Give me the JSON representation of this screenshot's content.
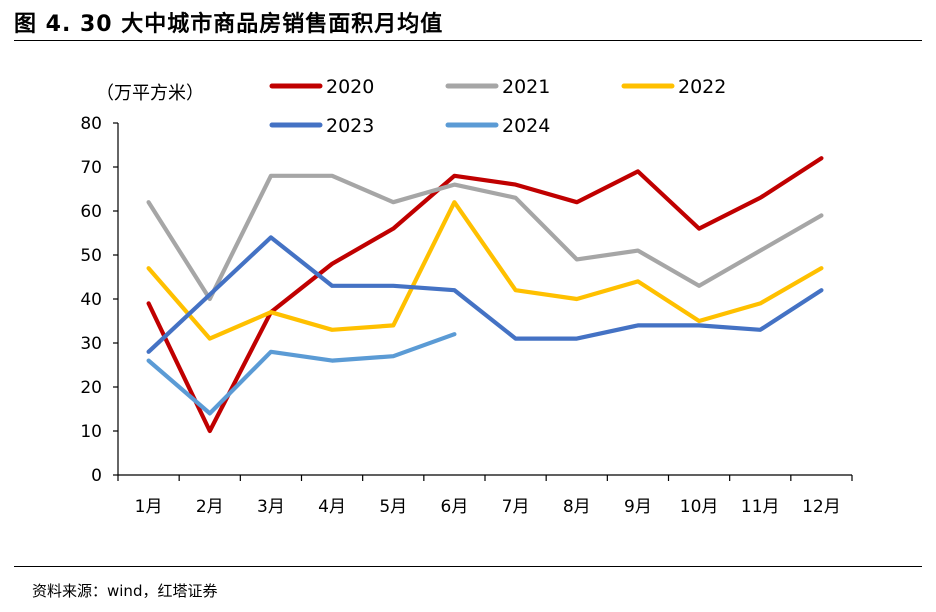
{
  "figure": {
    "title": "图 4. 30 大中城市商品房销售面积月均值",
    "source": "资料来源：wind，红塔证券"
  },
  "chart_data": {
    "type": "line",
    "unit_label": "（万平方米）",
    "categories": [
      "1月",
      "2月",
      "3月",
      "4月",
      "5月",
      "6月",
      "7月",
      "8月",
      "9月",
      "10月",
      "11月",
      "12月"
    ],
    "ylim": [
      0,
      80
    ],
    "yticks": [
      "0",
      "10",
      "20",
      "30",
      "40",
      "50",
      "60",
      "70",
      "80"
    ],
    "grid": false,
    "legend_position": "top",
    "series": [
      {
        "name": "2020",
        "color": "#C00000",
        "values": [
          39,
          10,
          37,
          48,
          56,
          68,
          66,
          62,
          69,
          56,
          63,
          72
        ]
      },
      {
        "name": "2021",
        "color": "#A6A6A6",
        "values": [
          62,
          40,
          68,
          68,
          62,
          66,
          63,
          49,
          51,
          43,
          51,
          59
        ]
      },
      {
        "name": "2022",
        "color": "#FFC000",
        "values": [
          47,
          31,
          37,
          33,
          34,
          62,
          42,
          40,
          44,
          35,
          39,
          47
        ]
      },
      {
        "name": "2023",
        "color": "#4472C4",
        "values": [
          28,
          41,
          54,
          43,
          43,
          42,
          31,
          31,
          34,
          34,
          33,
          42
        ]
      },
      {
        "name": "2024",
        "color": "#5B9BD5",
        "values": [
          26,
          14,
          28,
          26,
          27,
          32,
          null,
          null,
          null,
          null,
          null,
          null
        ]
      }
    ]
  }
}
